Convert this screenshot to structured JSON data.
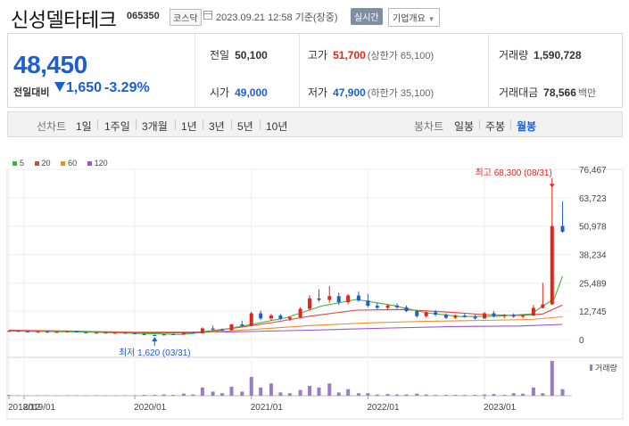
{
  "header": {
    "stock_name": "신성델타테크",
    "stock_code": "065350",
    "market_badge": "코스닥",
    "calendar_icon": "calendar-icon",
    "timestamp": "2023.09.21 12:58 기준(장중)",
    "realtime_button": "실시간",
    "company_info_button": "기업개요",
    "dropdown_icon": "chevron-down-icon"
  },
  "price": {
    "current": "48,450",
    "compare_label": "전일대비",
    "change": "1,650",
    "change_pct": "-3.29%",
    "direction_icon": "down-triangle-icon"
  },
  "stats": {
    "prev_close": {
      "label": "전일",
      "value": "50,100"
    },
    "high": {
      "label": "고가",
      "value": "51,700",
      "note": "(상한가 65,100)"
    },
    "volume": {
      "label": "거래량",
      "value": "1,590,728"
    },
    "open": {
      "label": "시가",
      "value": "49,000"
    },
    "low": {
      "label": "저가",
      "value": "47,900",
      "note": "(하한가 35,100)"
    },
    "amount": {
      "label": "거래대금",
      "value": "78,566",
      "unit": "백만"
    }
  },
  "toolbar": {
    "line_chart_label": "선차트",
    "line_periods": [
      "1일",
      "1주일",
      "3개월",
      "1년",
      "3년",
      "5년",
      "10년"
    ],
    "candle_chart_label": "봉차트",
    "candle_periods": [
      "일봉",
      "주봉",
      "월봉"
    ],
    "active_candle_period": "월봉"
  },
  "colors": {
    "up": "#e0251b",
    "down": "#1d5fd1",
    "ma5": "#3fb33c",
    "ma20": "#e2443b",
    "ma60": "#f08c1e",
    "ma120": "#9a4fd1",
    "volume": "#9b7bc8"
  },
  "chart_data": {
    "type": "candlestick",
    "interval": "monthly",
    "legend": [
      {
        "name": "5",
        "color": "#3fb33c"
      },
      {
        "name": "20",
        "color": "#e2443b"
      },
      {
        "name": "60",
        "color": "#f08c1e"
      },
      {
        "name": "120",
        "color": "#9a4fd1"
      }
    ],
    "y_ticks": [
      "76,467",
      "63,723",
      "50,978",
      "38,234",
      "25,489",
      "12,745",
      "0"
    ],
    "y_tick_values": [
      76467,
      63723,
      50978,
      38234,
      25489,
      12745,
      0
    ],
    "ylim": [
      0,
      76467
    ],
    "x_ticks": [
      "2018/12",
      "2019/01",
      "2020/01",
      "2021/01",
      "2022/01",
      "2023/01"
    ],
    "max_annotation": "최고 68,300 (08/31)",
    "min_annotation": "최저 1,620 (03/31)",
    "volume_label": "거래량",
    "volume_legend_icon": "volume-swatch-icon",
    "candles": [
      [
        2018.92,
        3700,
        4100,
        3500,
        3900
      ],
      [
        2019.0,
        3900,
        4200,
        3400,
        3600
      ],
      [
        2019.08,
        3600,
        3900,
        3300,
        3400
      ],
      [
        2019.17,
        3400,
        3700,
        3200,
        3500
      ],
      [
        2019.25,
        3500,
        3800,
        3100,
        3200
      ],
      [
        2019.33,
        3200,
        3600,
        3000,
        3400
      ],
      [
        2019.42,
        3400,
        3900,
        3200,
        3700
      ],
      [
        2019.5,
        3700,
        3900,
        3100,
        3200
      ],
      [
        2019.58,
        3200,
        3400,
        2800,
        3000
      ],
      [
        2019.67,
        3000,
        3300,
        2700,
        3100
      ],
      [
        2019.75,
        3100,
        3300,
        2800,
        2900
      ],
      [
        2019.83,
        2900,
        3200,
        2600,
        3000
      ],
      [
        2019.92,
        3000,
        3200,
        2700,
        2800
      ],
      [
        2020.0,
        2800,
        3000,
        2400,
        2500
      ],
      [
        2020.08,
        2500,
        2700,
        1900,
        2000
      ],
      [
        2020.17,
        2000,
        2300,
        1620,
        1900
      ],
      [
        2020.25,
        1900,
        2600,
        1800,
        2400
      ],
      [
        2020.33,
        2400,
        2700,
        2100,
        2300
      ],
      [
        2020.42,
        2300,
        3300,
        2200,
        3100
      ],
      [
        2020.5,
        3100,
        3500,
        2600,
        2800
      ],
      [
        2020.58,
        2800,
        5500,
        2700,
        5000
      ],
      [
        2020.67,
        5000,
        6200,
        4200,
        4500
      ],
      [
        2020.75,
        4500,
        5000,
        3800,
        4200
      ],
      [
        2020.83,
        4200,
        7000,
        4000,
        6800
      ],
      [
        2020.92,
        6800,
        8500,
        5800,
        6200
      ],
      [
        2021.0,
        6200,
        12500,
        6000,
        11800
      ],
      [
        2021.08,
        11800,
        13000,
        8800,
        9500
      ],
      [
        2021.17,
        9500,
        11500,
        8500,
        10800
      ],
      [
        2021.25,
        10800,
        11500,
        8800,
        9300
      ],
      [
        2021.33,
        9300,
        10500,
        8300,
        10000
      ],
      [
        2021.42,
        10000,
        14500,
        9500,
        13800
      ],
      [
        2021.5,
        13800,
        20000,
        13000,
        18500
      ],
      [
        2021.58,
        18500,
        22500,
        17000,
        17800
      ],
      [
        2021.67,
        17800,
        24000,
        16500,
        19500
      ],
      [
        2021.75,
        19500,
        21000,
        15500,
        16800
      ],
      [
        2021.83,
        16800,
        20500,
        16000,
        19800
      ],
      [
        2021.92,
        19800,
        21500,
        17000,
        17500
      ],
      [
        2022.0,
        17500,
        20500,
        14500,
        15200
      ],
      [
        2022.08,
        15200,
        16500,
        13500,
        14300
      ],
      [
        2022.17,
        14300,
        15800,
        13200,
        15300
      ],
      [
        2022.25,
        15300,
        16300,
        13800,
        14500
      ],
      [
        2022.33,
        14500,
        15300,
        12300,
        12800
      ],
      [
        2022.42,
        12800,
        13300,
        9800,
        10500
      ],
      [
        2022.5,
        10500,
        12800,
        10000,
        12300
      ],
      [
        2022.58,
        12300,
        13300,
        10500,
        11200
      ],
      [
        2022.67,
        11200,
        11800,
        9300,
        9800
      ],
      [
        2022.75,
        9800,
        11300,
        9300,
        10800
      ],
      [
        2022.83,
        10800,
        11800,
        9800,
        10300
      ],
      [
        2022.92,
        10300,
        11300,
        9000,
        9500
      ],
      [
        2023.0,
        9500,
        12300,
        9300,
        11800
      ],
      [
        2023.08,
        11800,
        12800,
        10000,
        10500
      ],
      [
        2023.17,
        10500,
        11500,
        9500,
        11000
      ],
      [
        2023.25,
        11000,
        11800,
        9800,
        10300
      ],
      [
        2023.33,
        10300,
        11300,
        9500,
        10800
      ],
      [
        2023.42,
        10800,
        15500,
        10500,
        14200
      ],
      [
        2023.5,
        14200,
        25500,
        14000,
        15800
      ],
      [
        2023.58,
        15800,
        68300,
        15500,
        51000
      ],
      [
        2023.67,
        51000,
        62000,
        47900,
        48450
      ]
    ],
    "volume": [
      [
        2018.92,
        2
      ],
      [
        2019.0,
        1
      ],
      [
        2019.08,
        1
      ],
      [
        2019.17,
        1
      ],
      [
        2019.25,
        1
      ],
      [
        2019.33,
        1
      ],
      [
        2019.42,
        1
      ],
      [
        2019.5,
        1
      ],
      [
        2019.58,
        1
      ],
      [
        2019.67,
        1
      ],
      [
        2019.75,
        1
      ],
      [
        2019.83,
        1
      ],
      [
        2019.92,
        1
      ],
      [
        2020.0,
        1
      ],
      [
        2020.08,
        2
      ],
      [
        2020.17,
        2
      ],
      [
        2020.25,
        3
      ],
      [
        2020.33,
        2
      ],
      [
        2020.42,
        5
      ],
      [
        2020.5,
        3
      ],
      [
        2020.58,
        20
      ],
      [
        2020.67,
        10
      ],
      [
        2020.75,
        6
      ],
      [
        2020.83,
        22
      ],
      [
        2020.92,
        10
      ],
      [
        2021.0,
        46
      ],
      [
        2021.08,
        20
      ],
      [
        2021.17,
        30
      ],
      [
        2021.25,
        8
      ],
      [
        2021.33,
        6
      ],
      [
        2021.42,
        14
      ],
      [
        2021.5,
        24
      ],
      [
        2021.58,
        20
      ],
      [
        2021.67,
        30
      ],
      [
        2021.75,
        8
      ],
      [
        2021.83,
        16
      ],
      [
        2021.92,
        6
      ],
      [
        2022.0,
        6
      ],
      [
        2022.08,
        3
      ],
      [
        2022.17,
        4
      ],
      [
        2022.25,
        3
      ],
      [
        2022.33,
        3
      ],
      [
        2022.42,
        5
      ],
      [
        2022.5,
        3
      ],
      [
        2022.58,
        2
      ],
      [
        2022.67,
        2
      ],
      [
        2022.75,
        2
      ],
      [
        2022.83,
        2
      ],
      [
        2022.92,
        2
      ],
      [
        2023.0,
        3
      ],
      [
        2023.08,
        4
      ],
      [
        2023.17,
        2
      ],
      [
        2023.25,
        6
      ],
      [
        2023.33,
        5
      ],
      [
        2023.42,
        20
      ],
      [
        2023.5,
        6
      ],
      [
        2023.58,
        85
      ],
      [
        2023.67,
        16
      ]
    ],
    "moving_averages": {
      "5": [
        [
          2018.92,
          3800
        ],
        [
          2019.5,
          3500
        ],
        [
          2020.0,
          2800
        ],
        [
          2020.4,
          2300
        ],
        [
          2020.7,
          3800
        ],
        [
          2021.0,
          6800
        ],
        [
          2021.3,
          9800
        ],
        [
          2021.6,
          15000
        ],
        [
          2021.9,
          18000
        ],
        [
          2022.2,
          15500
        ],
        [
          2022.5,
          12000
        ],
        [
          2022.8,
          10300
        ],
        [
          2023.1,
          10500
        ],
        [
          2023.4,
          11500
        ],
        [
          2023.6,
          18500
        ],
        [
          2023.67,
          28500
        ]
      ],
      "20": [
        [
          2018.92,
          4200
        ],
        [
          2019.5,
          3800
        ],
        [
          2020.0,
          3000
        ],
        [
          2020.5,
          3000
        ],
        [
          2020.9,
          5500
        ],
        [
          2021.2,
          7800
        ],
        [
          2021.5,
          10500
        ],
        [
          2021.9,
          13200
        ],
        [
          2022.3,
          13500
        ],
        [
          2022.7,
          12300
        ],
        [
          2023.0,
          11200
        ],
        [
          2023.3,
          10800
        ],
        [
          2023.5,
          11500
        ],
        [
          2023.67,
          15500
        ]
      ],
      "60": [
        [
          2018.92,
          3900
        ],
        [
          2020.0,
          3300
        ],
        [
          2020.6,
          3200
        ],
        [
          2021.0,
          4500
        ],
        [
          2021.5,
          6300
        ],
        [
          2022.0,
          7500
        ],
        [
          2022.5,
          8200
        ],
        [
          2023.0,
          8600
        ],
        [
          2023.4,
          9000
        ],
        [
          2023.67,
          10200
        ]
      ],
      "120": [
        [
          2018.92,
          3800
        ],
        [
          2020.0,
          3400
        ],
        [
          2020.8,
          3400
        ],
        [
          2021.5,
          4200
        ],
        [
          2022.2,
          5200
        ],
        [
          2022.8,
          5900
        ],
        [
          2023.3,
          6100
        ],
        [
          2023.67,
          6800
        ]
      ]
    }
  }
}
